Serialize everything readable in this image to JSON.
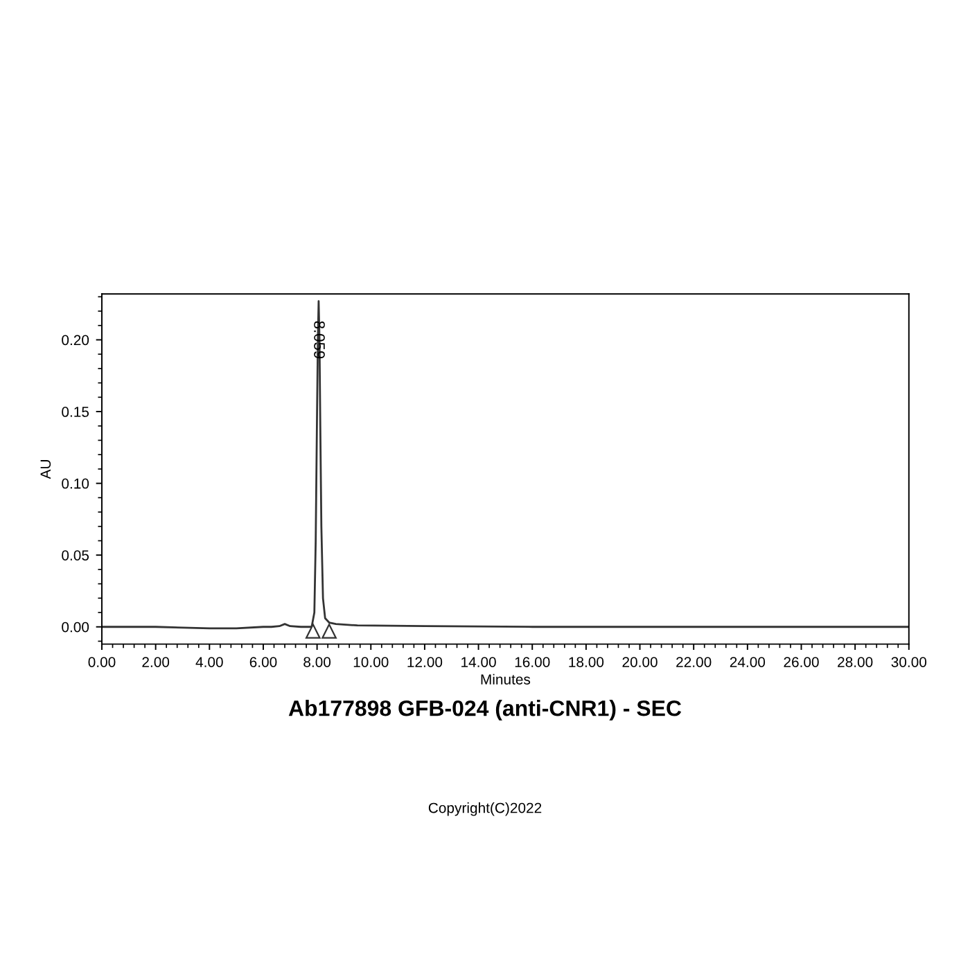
{
  "chart_data": {
    "type": "line",
    "title": "Ab177898 GFB-024 (anti-CNR1) - SEC",
    "xlabel": "Minutes",
    "ylabel": "AU",
    "x": [
      0,
      2,
      4,
      5,
      6,
      6.3,
      6.6,
      6.8,
      7.0,
      7.4,
      7.8,
      7.9,
      7.95,
      8.0,
      8.03,
      8.059,
      8.09,
      8.12,
      8.16,
      8.22,
      8.3,
      8.45,
      8.7,
      9.5,
      12,
      16,
      20,
      24,
      28,
      30
    ],
    "series": [
      {
        "color": "#333333",
        "values": [
          0.0,
          0.0,
          -0.001,
          -0.001,
          0.0,
          0.0,
          0.0005,
          0.002,
          0.0005,
          0.0,
          0.0,
          0.01,
          0.06,
          0.15,
          0.2,
          0.227,
          0.2,
          0.14,
          0.07,
          0.02,
          0.006,
          0.003,
          0.002,
          0.001,
          0.0005,
          0.0,
          0.0,
          0.0,
          0.0,
          0.0
        ]
      }
    ],
    "xlim": [
      0,
      30
    ],
    "xticks": [
      {
        "value": 0,
        "label": "0.00"
      },
      {
        "value": 2,
        "label": "2.00"
      },
      {
        "value": 4,
        "label": "4.00"
      },
      {
        "value": 6,
        "label": "6.00"
      },
      {
        "value": 8,
        "label": "8.00"
      },
      {
        "value": 10,
        "label": "10.00"
      },
      {
        "value": 12,
        "label": "12.00"
      },
      {
        "value": 14,
        "label": "14.00"
      },
      {
        "value": 16,
        "label": "16.00"
      },
      {
        "value": 18,
        "label": "18.00"
      },
      {
        "value": 20,
        "label": "20.00"
      },
      {
        "value": 22,
        "label": "22.00"
      },
      {
        "value": 24,
        "label": "24.00"
      },
      {
        "value": 26,
        "label": "26.00"
      },
      {
        "value": 28,
        "label": "28.00"
      },
      {
        "value": 30,
        "label": "30.00"
      }
    ],
    "ylim": [
      -0.012,
      0.232
    ],
    "yticks": [
      {
        "value": 0,
        "label": "0.00"
      },
      {
        "value": 0.05,
        "label": "0.05"
      },
      {
        "value": 0.1,
        "label": "0.10"
      },
      {
        "value": 0.15,
        "label": "0.15"
      },
      {
        "value": 0.2,
        "label": "0.20"
      }
    ],
    "grid": false,
    "legend": false,
    "annotations": [
      {
        "text": "8.059",
        "x": 8.059,
        "y": 0.2
      },
      "Copyright(C)2022"
    ]
  }
}
